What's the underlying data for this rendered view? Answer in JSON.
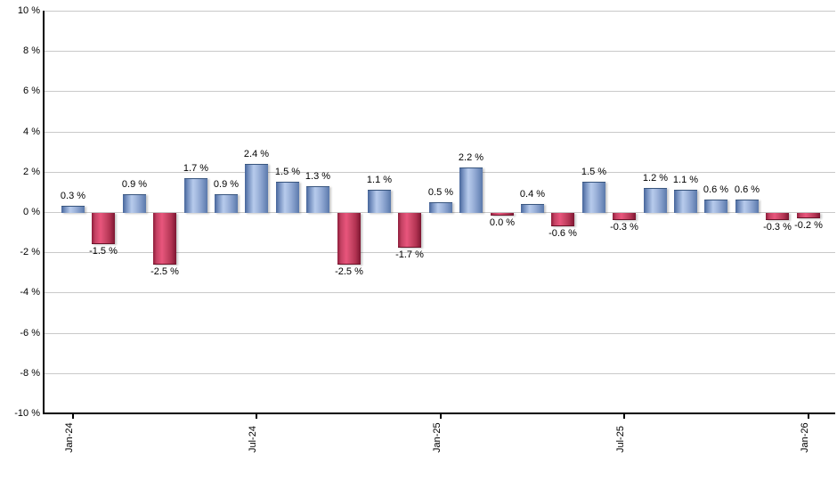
{
  "chart_data": {
    "type": "bar",
    "title": "",
    "xlabel": "",
    "ylabel": "",
    "unit": "%",
    "ylim": [
      -10,
      10
    ],
    "grid": true,
    "legend": "none",
    "y_ticks": [
      {
        "value": 10,
        "label": "10 %"
      },
      {
        "value": 8,
        "label": "8 %"
      },
      {
        "value": 6,
        "label": "6 %"
      },
      {
        "value": 4,
        "label": "4 %"
      },
      {
        "value": 2,
        "label": "2 %"
      },
      {
        "value": 0,
        "label": "0 %"
      },
      {
        "value": -2,
        "label": "-2 %"
      },
      {
        "value": -4,
        "label": "-4 %"
      },
      {
        "value": -6,
        "label": "-6 %"
      },
      {
        "value": -8,
        "label": "-8 %"
      },
      {
        "value": -10,
        "label": "-10 %"
      }
    ],
    "x_ticks": [
      {
        "index": 0,
        "label": "Jan-24"
      },
      {
        "index": 6,
        "label": "Jul-24"
      },
      {
        "index": 12,
        "label": "Jan-25"
      },
      {
        "index": 18,
        "label": "Jul-25"
      },
      {
        "index": 24,
        "label": "Jan-26"
      }
    ],
    "values": [
      0.3,
      -1.5,
      0.9,
      -2.5,
      1.7,
      0.9,
      2.4,
      1.5,
      1.3,
      -2.5,
      1.1,
      -1.7,
      0.5,
      2.2,
      0.0,
      0.4,
      -0.6,
      1.5,
      -0.3,
      1.2,
      1.1,
      0.6,
      0.6,
      -0.3,
      -0.2
    ],
    "point_labels": [
      "0.3 %",
      "-1.5 %",
      "0.9 %",
      "-2.5 %",
      "1.7 %",
      "0.9 %",
      "2.4 %",
      "1.5 %",
      "1.3 %",
      "-2.5 %",
      "1.1 %",
      "-1.7 %",
      "0.5 %",
      "2.2 %",
      "0.0 %",
      "0.4 %",
      "-0.6 %",
      "1.5 %",
      "-0.3 %",
      "1.2 %",
      "1.1 %",
      "0.6 %",
      "0.6 %",
      "-0.3 %",
      "-0.2 %"
    ],
    "colors": {
      "positive_bar_dark": "#46659a",
      "positive_bar_light": "#b7cbec",
      "negative_bar_dark": "#8e1c3a",
      "negative_bar_light": "#e8557c",
      "gridline": "#c9c9c9",
      "axis": "#000000",
      "label_text": "#000000",
      "background": "#ffffff"
    }
  }
}
